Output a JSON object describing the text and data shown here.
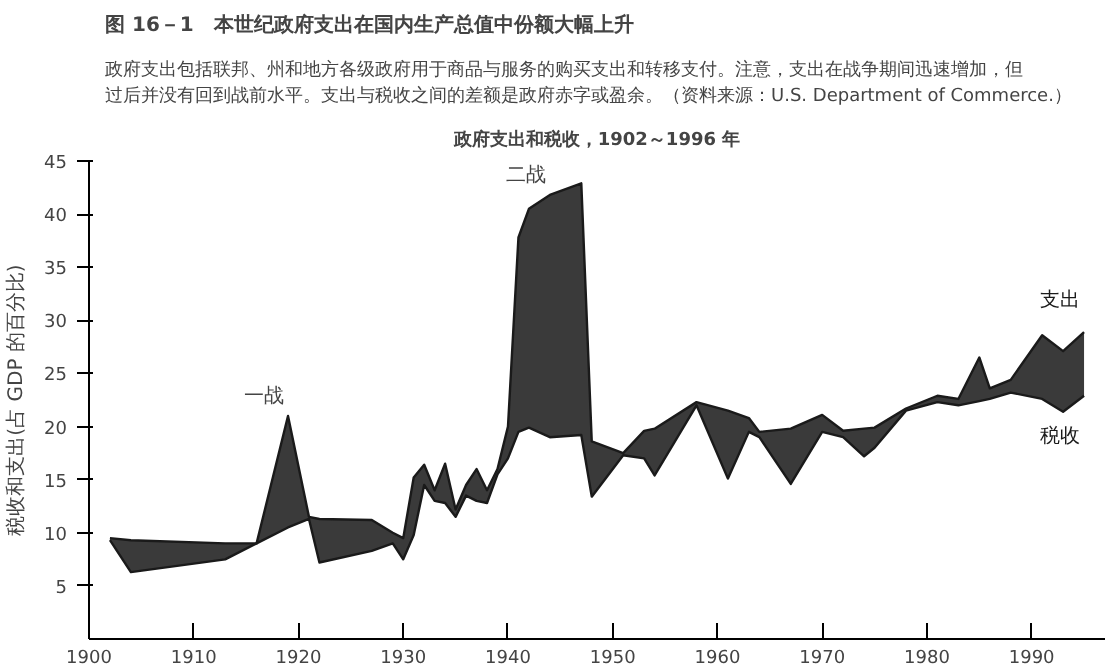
{
  "chart_data": {
    "type": "line",
    "title": "图 16－1　本世纪政府支出在国内生产总值中份额大幅上升",
    "subtitle": "政府支出包括联邦、州和地方各级政府用于商品与服务的购买支出和转移支付。注意，支出在战争期间迅速增加，但过后并没有回到战前水平。支出与税收之间的差额是政府赤字或盈余。（资料来源：U.S. Department of Commerce.）",
    "ylabel": "税收和支出(占 GDP 的百分比)",
    "annotations": [
      "政府支出和税收，1902～1996 年",
      {
        "text": "一战",
        "x": 1919,
        "y": 21.0
      },
      {
        "text": "二战",
        "x": 1944,
        "y": 41.8
      }
    ],
    "x": [
      1902,
      1904,
      1913,
      1916,
      1919,
      1921,
      1922,
      1927,
      1929,
      1930,
      1931,
      1932,
      1933,
      1934,
      1935,
      1936,
      1937,
      1938,
      1939,
      1940,
      1941,
      1942,
      1944,
      1947,
      1948,
      1951,
      1953,
      1954,
      1958,
      1961,
      1963,
      1964,
      1967,
      1970,
      1972,
      1974,
      1975,
      1978,
      1981,
      1983,
      1985,
      1986,
      1988,
      1991,
      1993,
      1995
    ],
    "series": [
      {
        "name": "支出",
        "color": "#1a1a1a",
        "values": [
          9.5,
          9.3,
          9.0,
          9.0,
          21.0,
          11.5,
          11.3,
          11.2,
          10.0,
          9.5,
          15.2,
          16.4,
          14.0,
          16.5,
          12.2,
          14.5,
          16.0,
          14.0,
          16.0,
          20.0,
          37.8,
          40.5,
          41.8,
          42.9,
          18.6,
          17.5,
          19.6,
          19.8,
          22.3,
          21.5,
          20.8,
          19.5,
          19.8,
          21.1,
          19.6,
          19.8,
          19.9,
          21.7,
          22.9,
          22.6,
          26.5,
          23.6,
          24.4,
          28.6,
          27.1,
          28.9
        ],
        "upper": [
          9.5,
          9.3,
          9.0,
          9.0,
          21.0,
          11.5,
          11.3,
          11.2,
          10.0,
          9.5,
          15.2,
          16.4,
          14.0,
          16.5,
          12.2,
          14.5,
          16.0,
          14.0,
          16.0,
          20.0,
          37.8,
          40.5,
          41.8,
          42.9,
          18.6,
          17.5,
          19.6,
          19.8,
          22.3,
          21.5,
          20.8,
          19.5,
          19.8,
          21.1,
          19.6,
          19.8,
          19.9,
          21.7,
          22.9,
          22.6,
          26.5,
          23.6,
          24.4,
          28.6,
          27.1,
          28.9
        ],
        "lower": [
          9.3,
          6.3,
          7.5,
          9.0,
          10.5,
          11.3,
          7.2,
          8.3,
          9.0,
          7.5,
          9.8,
          14.5,
          13.0,
          12.8,
          11.5,
          13.5,
          13.0,
          12.8,
          15.5,
          17.0,
          19.5,
          19.9,
          19.0,
          19.2,
          13.4,
          17.3,
          17.0,
          15.4,
          22.0,
          15.1,
          19.5,
          19.0,
          14.6,
          19.5,
          19.0,
          17.2,
          18.0,
          21.5,
          22.3,
          22.0,
          22.4,
          22.6,
          23.2,
          22.6,
          21.4,
          22.9
        ]
      },
      {
        "name": "税收",
        "color": "#1a1a1a",
        "values": [
          9.3,
          6.3,
          7.5,
          9.0,
          10.5,
          11.3,
          7.2,
          8.3,
          9.0,
          7.5,
          9.8,
          14.5,
          13.0,
          12.8,
          11.5,
          13.5,
          13.0,
          12.8,
          15.5,
          17.0,
          19.5,
          19.9,
          19.0,
          19.2,
          13.4,
          17.3,
          17.0,
          15.4,
          22.0,
          15.1,
          19.5,
          19.0,
          14.6,
          19.5,
          19.0,
          17.2,
          18.0,
          21.5,
          22.3,
          22.0,
          22.4,
          22.6,
          23.2,
          22.6,
          21.4,
          22.9
        ]
      }
    ],
    "xlim": [
      1900,
      1997
    ],
    "xticks": [
      1900,
      1910,
      1920,
      1930,
      1940,
      1950,
      1960,
      1970,
      1980,
      1990
    ],
    "ylim": [
      0,
      45
    ],
    "yticks": [
      5,
      10,
      15,
      20,
      25,
      30,
      35,
      40,
      45
    ],
    "grid": false
  }
}
